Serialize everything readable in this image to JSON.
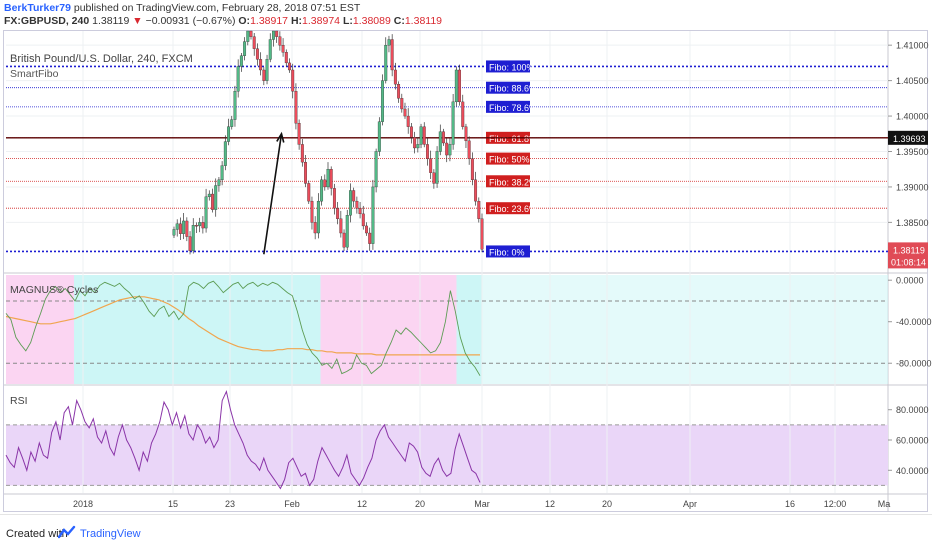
{
  "header": {
    "user": "BerkTurker79",
    "published": "published on TradingView.com, February 28, 2018 07:51 EST",
    "symbol": "FX:GBPUSD, 240",
    "last": "1.38119",
    "arrow": "▼",
    "change": "−0.00931 (−0.67%)",
    "o_label": "O:",
    "o": "1.38917",
    "h_label": "H:",
    "h": "1.38974",
    "l_label": "L:",
    "l": "1.38089",
    "c_label": "C:",
    "c": "1.38119"
  },
  "colors": {
    "up": "#53b987",
    "down": "#eb4d5c",
    "fibo_blue": "#1e1ed2",
    "fibo_red": "#d01f1f",
    "pink": "#fbd5f2",
    "cyan": "#cdf6f6",
    "rsi_band": "#ead6f8",
    "ma": "#f0a54e",
    "magnus": "#5c9c54",
    "rsi_line": "#8a35a8"
  },
  "chart_data": [
    {
      "type": "candlestick",
      "title": "British Pound/U.S. Dollar, 240, FXCM",
      "overlay": "SmartFibo",
      "y_ticks": [
        "1.41000",
        "1.40500",
        "1.40000",
        "1.39500",
        "1.39000",
        "1.38500"
      ],
      "ylim": [
        1.378,
        1.412
      ],
      "last_price_label": "1.38119",
      "countdown": "01:08:14",
      "crosshair_price": "1.39693",
      "fibo_levels": [
        {
          "label": "Fibo:  100%",
          "value": 1.407,
          "color": "blue"
        },
        {
          "label": "Fibo: 88.6%",
          "value": 1.404,
          "color": "blue"
        },
        {
          "label": "Fibo: 78.6%",
          "value": 1.4013,
          "color": "blue"
        },
        {
          "label": "Fibo: 61.8%",
          "value": 1.39693,
          "color": "red"
        },
        {
          "label": "Fibo:  50%",
          "value": 1.394,
          "color": "red"
        },
        {
          "label": "Fibo: 38.2%",
          "value": 1.3908,
          "color": "red"
        },
        {
          "label": "Fibo: 23.6%",
          "value": 1.387,
          "color": "red"
        },
        {
          "label": "Fibo:   0%",
          "value": 1.3809,
          "color": "blue"
        }
      ],
      "projection": {
        "from": [
          28,
          1.3805
        ],
        "to": [
          33.5,
          1.3975
        ]
      },
      "series_close": [
        1.384,
        1.3848,
        1.3834,
        1.3852,
        1.383,
        1.381,
        1.3846,
        1.3845,
        1.385,
        1.3842,
        1.3886,
        1.389,
        1.3868,
        1.3902,
        1.391,
        1.393,
        1.3964,
        1.3985,
        1.3995,
        1.4035,
        1.407,
        1.4085,
        1.4105,
        1.412,
        1.4112,
        1.4095,
        1.408,
        1.4065,
        1.405,
        1.408,
        1.4108,
        1.4122,
        1.4112,
        1.41,
        1.409,
        1.4075,
        1.4065,
        1.4035,
        1.399,
        1.396,
        1.3935,
        1.3905,
        1.388,
        1.385,
        1.3835,
        1.388,
        1.391,
        1.39,
        1.3925,
        1.3898,
        1.387,
        1.3855,
        1.3835,
        1.3815,
        1.386,
        1.3895,
        1.388,
        1.387,
        1.3862,
        1.3845,
        1.3835,
        1.382,
        1.39,
        1.395,
        1.3992,
        1.405,
        1.41,
        1.4108,
        1.4065,
        1.4045,
        1.4025,
        1.401,
        1.4,
        1.3985,
        1.397,
        1.3955,
        1.396,
        1.3985,
        1.396,
        1.394,
        1.392,
        1.3905,
        1.395,
        1.3978,
        1.3962,
        1.3945,
        1.396,
        1.402,
        1.4065,
        1.402,
        1.3985,
        1.3965,
        1.394,
        1.391,
        1.388,
        1.3855,
        1.3812
      ]
    },
    {
      "type": "line",
      "title": "MAGNUS® Cycles",
      "y_ticks": [
        "0.0000",
        "-40.0000",
        "-80.0000"
      ],
      "ylim": [
        -100,
        5
      ],
      "levels": [
        -20,
        -80
      ],
      "zones": [
        {
          "color": "pink",
          "from": 0,
          "to": 4
        },
        {
          "color": "cyan",
          "from": 4,
          "to": 18.5
        },
        {
          "color": "pink",
          "from": 18.5,
          "to": 26.5
        },
        {
          "color": "cyan",
          "from": 26.5,
          "to": 28
        }
      ],
      "series": [
        {
          "name": "",
          "values": [
            -32,
            -38,
            -55,
            -62,
            -68,
            -60,
            -45,
            -32,
            -18,
            -10,
            -6,
            -12,
            -8,
            -14,
            -20,
            -10,
            -15,
            -8,
            -12,
            -5,
            -2,
            -4,
            -6,
            -3,
            -8,
            -12,
            -18,
            -15,
            -22,
            -30,
            -35,
            -28,
            -25,
            -35,
            -30,
            -38,
            -32,
            -6,
            -2,
            -4,
            -8,
            -3,
            -1,
            -6,
            -12,
            -8,
            -4,
            -2,
            -8,
            -4,
            -2,
            -6,
            -3,
            -5,
            -2,
            -4,
            -8,
            -12,
            -15,
            -30,
            -48,
            -62,
            -70,
            -75,
            -82,
            -80,
            -85,
            -76,
            -90,
            -88,
            -85,
            -72,
            -80,
            -82,
            -90,
            -86,
            -82,
            -70,
            -60,
            -48,
            -52,
            -46,
            -50,
            -55,
            -60,
            -65,
            -70,
            -68,
            -60,
            -40,
            -10,
            -30,
            -55,
            -70,
            -78,
            -84,
            -92
          ]
        },
        {
          "name": "",
          "values": [
            -35,
            -36,
            -37,
            -38,
            -39,
            -40,
            -41,
            -42,
            -42,
            -42,
            -41,
            -40,
            -39,
            -38,
            -37,
            -35,
            -33,
            -31,
            -29,
            -27,
            -25,
            -23,
            -21,
            -19,
            -18,
            -17,
            -16,
            -16,
            -16,
            -17,
            -18,
            -19,
            -21,
            -23,
            -26,
            -29,
            -33,
            -37,
            -40,
            -44,
            -47,
            -50,
            -53,
            -56,
            -58,
            -60,
            -62,
            -64,
            -65,
            -66,
            -67,
            -67,
            -68,
            -68,
            -68,
            -67,
            -67,
            -66,
            -66,
            -66,
            -66,
            -67,
            -67,
            -68,
            -68,
            -69,
            -69,
            -70,
            -70,
            -70,
            -70,
            -71,
            -71,
            -71,
            -71,
            -72,
            -72,
            -72,
            -72,
            -72,
            -72,
            -72,
            -72,
            -72,
            -72,
            -72,
            -72,
            -72,
            -72,
            -72,
            -72,
            -72,
            -72,
            -72,
            -72,
            -72,
            -72
          ]
        }
      ]
    },
    {
      "type": "line",
      "title": "RSI",
      "y_ticks": [
        "80.0000",
        "60.0000",
        "40.0000"
      ],
      "ylim": [
        25,
        95
      ],
      "levels": [
        70,
        30
      ],
      "series": [
        {
          "name": "",
          "values": [
            50,
            45,
            42,
            55,
            48,
            40,
            52,
            46,
            58,
            50,
            48,
            65,
            72,
            60,
            78,
            82,
            70,
            86,
            80,
            72,
            68,
            74,
            62,
            58,
            66,
            55,
            50,
            62,
            70,
            60,
            55,
            48,
            40,
            52,
            46,
            58,
            64,
            72,
            85,
            80,
            70,
            78,
            68,
            76,
            64,
            60,
            70,
            66,
            58,
            62,
            55,
            60,
            86,
            92,
            80,
            70,
            64,
            58,
            50,
            46,
            44,
            40,
            48,
            40,
            36,
            32,
            28,
            34,
            45,
            48,
            42,
            36,
            38,
            30,
            34,
            46,
            55,
            50,
            45,
            40,
            36,
            42,
            50,
            38,
            34,
            30,
            35,
            42,
            48,
            60,
            66,
            70,
            62,
            58,
            54,
            50,
            46,
            58,
            56,
            52,
            42,
            38,
            36,
            44,
            48,
            40,
            36,
            38,
            54,
            64,
            56,
            48,
            40,
            38,
            32
          ]
        }
      ]
    }
  ],
  "x_axis": {
    "labels": [
      "2018",
      "15",
      "23",
      "Feb",
      "12",
      "20",
      "Mar",
      "12",
      "20",
      "Apr",
      "16",
      "12:00",
      "Ma"
    ]
  },
  "footer": {
    "created": "Created with",
    "brand": "TradingView"
  }
}
